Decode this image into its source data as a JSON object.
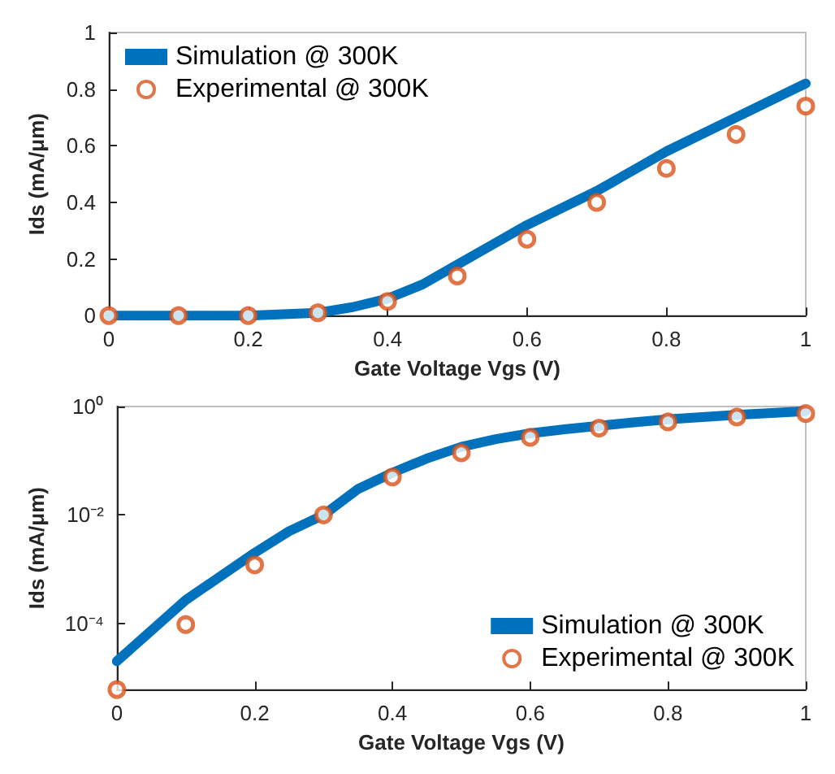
{
  "chart_data": [
    {
      "type": "line",
      "xlabel": "Gate Voltage Vgs (V)",
      "ylabel": "Ids (mA/μm)",
      "xlim": [
        0,
        1
      ],
      "xticks": [
        0,
        0.2,
        0.4,
        0.6,
        0.8,
        1
      ],
      "ylim": [
        0,
        1
      ],
      "yticks": [
        0,
        0.2,
        0.4,
        0.6,
        0.8,
        1
      ],
      "legend": "top left",
      "grid": false,
      "series": [
        {
          "name": "Simulation @ 300K",
          "color": "#0072bd",
          "marker": "none",
          "line_style": "solid",
          "x": [
            0,
            0.1,
            0.2,
            0.25,
            0.3,
            0.35,
            0.4,
            0.45,
            0.5,
            0.55,
            0.6,
            0.65,
            0.7,
            0.75,
            0.8,
            0.9,
            1
          ],
          "values": [
            0,
            0,
            0,
            0.005,
            0.01,
            0.03,
            0.06,
            0.11,
            0.18,
            0.25,
            0.32,
            0.38,
            0.44,
            0.51,
            0.58,
            0.7,
            0.82
          ]
        },
        {
          "name": "Experimental @ 300K",
          "type": "scatter",
          "color": "#d95319",
          "marker": "circle",
          "x": [
            0,
            0.1,
            0.2,
            0.3,
            0.4,
            0.5,
            0.6,
            0.7,
            0.8,
            0.9,
            1
          ],
          "values": [
            0,
            0,
            0,
            0.01,
            0.05,
            0.14,
            0.27,
            0.4,
            0.52,
            0.64,
            0.74
          ]
        }
      ]
    },
    {
      "type": "line",
      "xlabel": "Gate Voltage Vgs (V)",
      "ylabel": "Ids (mA/μm)",
      "xlim": [
        0,
        1
      ],
      "xticks": [
        0,
        0.2,
        0.4,
        0.6,
        0.8,
        1
      ],
      "ylim": [
        6e-06,
        1
      ],
      "yticks": [
        {
          "value": 0.0001,
          "label": "10⁻⁴"
        },
        {
          "value": 0.01,
          "label": "10⁻²"
        },
        {
          "value": 1,
          "label": "10⁰"
        }
      ],
      "log": "y",
      "legend": "bottom right",
      "grid": false,
      "series": [
        {
          "name": "Simulation @ 300K",
          "color": "#0072bd",
          "marker": "none",
          "line_style": "solid",
          "x": [
            0,
            0.1,
            0.2,
            0.25,
            0.3,
            0.35,
            0.4,
            0.45,
            0.5,
            0.55,
            0.6,
            0.65,
            0.7,
            0.75,
            0.8,
            0.9,
            1
          ],
          "values": [
            2e-05,
            0.00027,
            0.002,
            0.005,
            0.01,
            0.03,
            0.06,
            0.11,
            0.18,
            0.25,
            0.32,
            0.38,
            0.44,
            0.51,
            0.58,
            0.7,
            0.82
          ]
        },
        {
          "name": "Experimental @ 300K",
          "type": "scatter",
          "color": "#d95319",
          "marker": "circle",
          "x": [
            0,
            0.1,
            0.2,
            0.3,
            0.4,
            0.5,
            0.6,
            0.7,
            0.8,
            0.9,
            1
          ],
          "values": [
            6e-06,
            9.5e-05,
            0.0012,
            0.01,
            0.05,
            0.14,
            0.27,
            0.4,
            0.52,
            0.64,
            0.74
          ]
        }
      ]
    }
  ]
}
